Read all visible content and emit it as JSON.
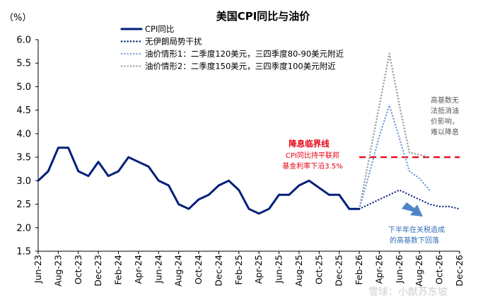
{
  "chart_data": {
    "type": "line",
    "title": "美国CPI同比与油价",
    "ylabel": "（%）",
    "ylim": [
      1.5,
      6.0
    ],
    "yticks": [
      "6.0",
      "5.5",
      "5.0",
      "4.5",
      "4.0",
      "3.5",
      "3.0",
      "2.5",
      "2.0",
      "1.5"
    ],
    "xticks": [
      "Jun-23",
      "Aug-23",
      "Oct-23",
      "Dec-23",
      "Feb-24",
      "Apr-24",
      "Jun-24",
      "Aug-24",
      "Oct-24",
      "Dec-24",
      "Feb-25",
      "Apr-25",
      "Jun-25",
      "Aug-25",
      "Oct-25",
      "Dec-25",
      "Feb-26",
      "Apr-26",
      "Jun-26",
      "Aug-26",
      "Oct-26",
      "Dec-26"
    ],
    "months": [
      "Jun-23",
      "Jul-23",
      "Aug-23",
      "Sep-23",
      "Oct-23",
      "Nov-23",
      "Dec-23",
      "Jan-24",
      "Feb-24",
      "Mar-24",
      "Apr-24",
      "May-24",
      "Jun-24",
      "Jul-24",
      "Aug-24",
      "Sep-24",
      "Oct-24",
      "Nov-24",
      "Dec-24",
      "Jan-25",
      "Feb-25",
      "Mar-25",
      "Apr-25",
      "May-25",
      "Jun-25",
      "Jul-25",
      "Aug-25",
      "Sep-25",
      "Oct-25",
      "Nov-25",
      "Dec-25",
      "Jan-26",
      "Feb-26",
      "Mar-26",
      "Apr-26",
      "May-26",
      "Jun-26",
      "Jul-26",
      "Aug-26",
      "Sep-26",
      "Oct-26",
      "Nov-26",
      "Dec-26"
    ],
    "series": [
      {
        "name": "CPI同比",
        "style": "solid",
        "color": "#001f7a",
        "values": [
          3.0,
          3.2,
          3.7,
          3.7,
          3.2,
          3.1,
          3.4,
          3.1,
          3.2,
          3.5,
          3.4,
          3.3,
          3.0,
          2.9,
          2.5,
          2.4,
          2.6,
          2.7,
          2.9,
          3.0,
          2.8,
          2.4,
          2.3,
          2.4,
          2.7,
          2.7,
          2.9,
          3.0,
          2.85,
          2.7,
          2.7,
          2.4,
          2.4,
          null,
          null,
          null,
          null,
          null,
          null,
          null,
          null,
          null,
          null
        ]
      },
      {
        "name": "无伊朗局势干扰",
        "style": "dotted",
        "color": "#001f7a",
        "values": [
          null,
          null,
          null,
          null,
          null,
          null,
          null,
          null,
          null,
          null,
          null,
          null,
          null,
          null,
          null,
          null,
          null,
          null,
          null,
          null,
          null,
          null,
          null,
          null,
          null,
          null,
          null,
          null,
          null,
          null,
          null,
          null,
          2.4,
          2.5,
          2.6,
          2.7,
          2.8,
          2.7,
          2.6,
          2.5,
          2.45,
          2.45,
          2.4
        ]
      },
      {
        "name": "油价情形1：二季度120美元，三四季度80-90美元附近",
        "style": "dotted",
        "color": "#7fa3d9",
        "values": [
          null,
          null,
          null,
          null,
          null,
          null,
          null,
          null,
          null,
          null,
          null,
          null,
          null,
          null,
          null,
          null,
          null,
          null,
          null,
          null,
          null,
          null,
          null,
          null,
          null,
          null,
          null,
          null,
          null,
          null,
          null,
          null,
          2.4,
          3.15,
          3.95,
          4.6,
          3.9,
          3.2,
          3.05,
          2.8
        ]
      },
      {
        "name": "油价情形2：二季度150美元，三四季度100美元附近",
        "style": "dotted",
        "color": "#a0a0a0",
        "values": [
          null,
          null,
          null,
          null,
          null,
          null,
          null,
          null,
          null,
          null,
          null,
          null,
          null,
          null,
          null,
          null,
          null,
          null,
          null,
          null,
          null,
          null,
          null,
          null,
          null,
          null,
          null,
          null,
          null,
          null,
          null,
          null,
          2.4,
          3.5,
          4.6,
          5.7,
          4.6,
          3.6,
          3.55,
          3.5
        ]
      }
    ],
    "threshold": {
      "value": 3.5,
      "color": "#e60012",
      "from": "Feb-26"
    },
    "annotations": {
      "threshold_title": "降息临界线",
      "threshold_line1": "CPI同比持平联邦",
      "threshold_line2": "基金利率下沿3.5%",
      "high_base_lines": [
        "高基数无",
        "法抵消油",
        "价影响，",
        "难以降息"
      ],
      "second_half_line1": "下半年在关税造成",
      "second_half_line2": "的高基数下回落"
    },
    "watermark": "雪球：小猷苏东坡"
  }
}
